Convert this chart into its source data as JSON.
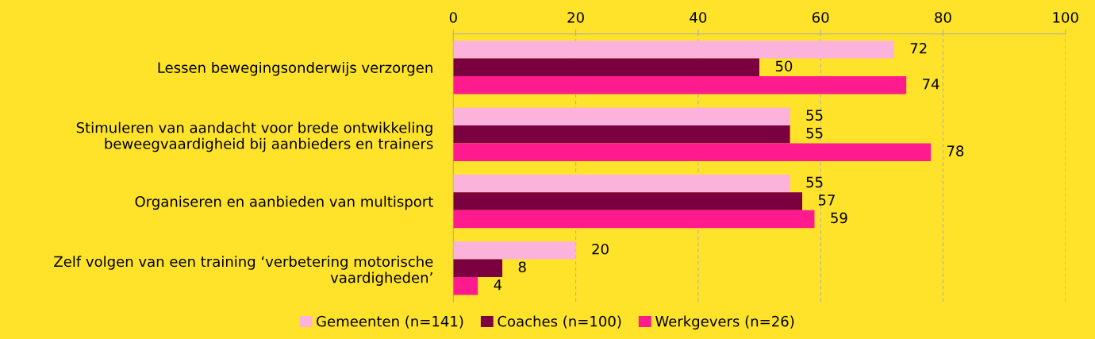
{
  "chart_data": {
    "type": "bar",
    "orientation": "horizontal",
    "categories": [
      "Lessen bewegingsonderwijs verzorgen",
      "Stimuleren van aandacht voor brede ontwikkeling beweegvaardigheid bij aanbieders en trainers",
      "Organiseren en aanbieden van multisport",
      "Zelf volgen van een training ‘verbetering motorische vaardigheden’"
    ],
    "series": [
      {
        "name": "Gemeenten (n=141)",
        "color": "#fbb3dc",
        "values": [
          72,
          55,
          55,
          20
        ]
      },
      {
        "name": "Coaches (n=100)",
        "color": "#7b0040",
        "values": [
          50,
          55,
          57,
          8
        ]
      },
      {
        "name": "Werkgevers (n=26)",
        "color": "#ff1a8e",
        "values": [
          74,
          78,
          59,
          4
        ]
      }
    ],
    "xlim": [
      0,
      100
    ],
    "xticks": [
      0,
      20,
      40,
      60,
      80,
      100
    ],
    "grid": "x",
    "data_labels": true,
    "legend": "bottom"
  }
}
